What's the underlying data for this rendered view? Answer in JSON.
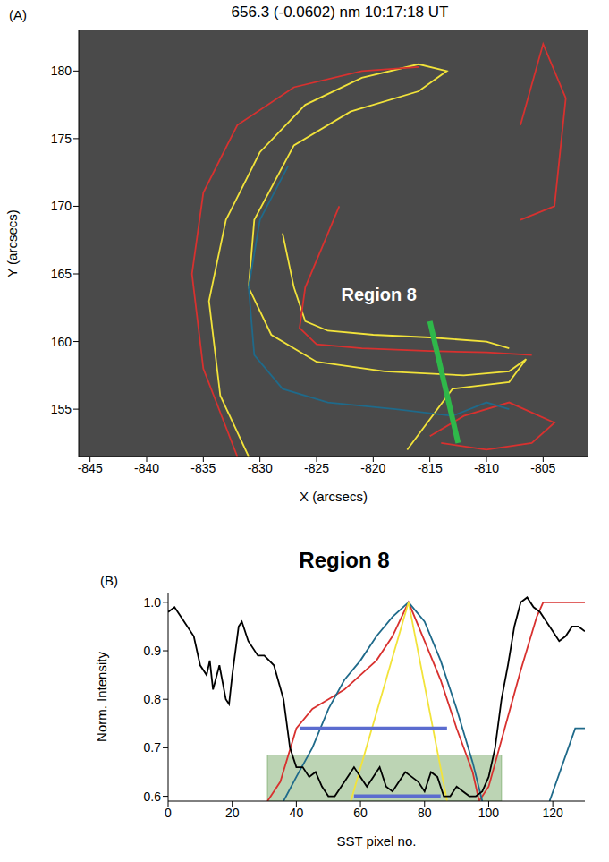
{
  "chart_data": [
    {
      "panel": "(A)",
      "type": "line",
      "title": "656.3 (-0.0602) nm   10:17:18 UT",
      "x_label": "X (arcsecs)",
      "y_label": "Y (arcsecs)",
      "xlim": [
        -846,
        -801
      ],
      "xticks": [
        -845,
        -840,
        -835,
        -830,
        -825,
        -820,
        -815,
        -810,
        -805
      ],
      "ylim": [
        151.5,
        183
      ],
      "yticks": [
        155,
        160,
        165,
        170,
        175,
        180
      ],
      "annotations": [
        {
          "text": "Region 8",
          "x": -819.5,
          "y": 163.5
        }
      ],
      "series": [
        {
          "color": "#f2e33a",
          "x": [
            -831,
            -833.5,
            -834.5,
            -833,
            -830,
            -826,
            -821,
            -816,
            -813.5,
            -816,
            -822,
            -827,
            -830.5,
            -831,
            -829,
            -825,
            -819,
            -812,
            -808,
            -806.5,
            -808,
            -813,
            -817
          ],
          "y": [
            151.5,
            156,
            163,
            169,
            174,
            177.5,
            179.5,
            180.5,
            180,
            178.5,
            177,
            174.5,
            169,
            164,
            160.5,
            158.5,
            157.8,
            157.5,
            157.8,
            158.7,
            157,
            156.5,
            152
          ]
        },
        {
          "color": "#f2e33a",
          "x": [
            -828,
            -827,
            -826,
            -824,
            -820,
            -815,
            -810,
            -808
          ],
          "y": [
            168,
            164,
            161.5,
            160.8,
            160.5,
            160.3,
            160,
            159.5
          ]
        },
        {
          "color": "#d8312f",
          "x": [
            -832,
            -835,
            -836,
            -835,
            -832,
            -827,
            -821,
            -816
          ],
          "y": [
            151.5,
            158,
            165,
            171,
            176,
            178.8,
            180,
            180.3
          ]
        },
        {
          "color": "#d8312f",
          "x": [
            -823,
            -824.5,
            -826,
            -826.5,
            -825,
            -821,
            -815,
            -810,
            -806
          ],
          "y": [
            170,
            167,
            164,
            161,
            159.8,
            159.5,
            159.3,
            159.2,
            159
          ]
        },
        {
          "color": "#d8312f",
          "x": [
            -815,
            -812,
            -808,
            -804,
            -806,
            -810,
            -814
          ],
          "y": [
            153,
            154.5,
            155.5,
            154,
            152.5,
            152,
            152.5
          ]
        },
        {
          "color": "#d8312f",
          "x": [
            -807,
            -804,
            -803,
            -805,
            -807
          ],
          "y": [
            169,
            170,
            178,
            182,
            176
          ]
        },
        {
          "color": "#1f6a8a",
          "x": [
            -827.5,
            -830,
            -831,
            -830.5,
            -828,
            -824,
            -818,
            -813,
            -810,
            -808
          ],
          "y": [
            173,
            169,
            164,
            159,
            156.5,
            155.5,
            155,
            154.5,
            155.5,
            155
          ]
        },
        {
          "color": "#2fb84a",
          "line_style": "bold",
          "x": [
            -815,
            -812.5
          ],
          "y": [
            161.5,
            152.5
          ]
        }
      ]
    },
    {
      "panel": "(B)",
      "type": "line",
      "title": "Region 8",
      "x_label": "SST pixel no.",
      "y_label": "Norm. Intensity",
      "xlim": [
        0,
        130
      ],
      "xticks": [
        0,
        20,
        40,
        60,
        80,
        100,
        120
      ],
      "ylim": [
        0.59,
        1.02
      ],
      "yticks": [
        0.6,
        0.7,
        0.8,
        0.9,
        {
          "value": 1,
          "label": "1.0"
        }
      ],
      "shaded_region": {
        "color": "#8fb882",
        "x": [
          31,
          104
        ],
        "y": [
          0.59,
          0.685
        ]
      },
      "horizontal_bars": {
        "color": "#5b6ccf",
        "segments": [
          {
            "y": 0.74,
            "x": [
              41,
              87
            ]
          },
          {
            "y": 0.6,
            "x": [
              58,
              85
            ]
          }
        ]
      },
      "series": [
        {
          "color": "#d8312f",
          "x": [
            31,
            35,
            40,
            45,
            50,
            55,
            60,
            65,
            70,
            75,
            80,
            85,
            90,
            95,
            97,
            100,
            105,
            110,
            115,
            117,
            130
          ],
          "y": [
            0.59,
            0.63,
            0.74,
            0.78,
            0.8,
            0.82,
            0.85,
            0.88,
            0.93,
            1.0,
            0.92,
            0.84,
            0.74,
            0.65,
            0.59,
            0.62,
            0.74,
            0.86,
            0.97,
            1.0,
            1.0
          ]
        },
        {
          "color": "#1f6a8a",
          "x": [
            36,
            40,
            45,
            50,
            55,
            60,
            65,
            70,
            75,
            80,
            85,
            90,
            95,
            98
          ],
          "y": [
            0.59,
            0.64,
            0.7,
            0.78,
            0.84,
            0.88,
            0.93,
            0.97,
            1.0,
            0.96,
            0.88,
            0.78,
            0.67,
            0.59
          ]
        },
        {
          "color": "#1f6a8a",
          "x": [
            119,
            127,
            130
          ],
          "y": [
            0.59,
            0.74,
            0.74
          ]
        },
        {
          "color": "#f2e33a",
          "x": [
            57,
            75,
            87
          ],
          "y": [
            0.59,
            1.0,
            0.59
          ]
        },
        {
          "color": "#000000",
          "x": [
            0,
            2,
            5,
            8,
            10,
            12,
            13,
            14,
            16,
            18,
            19,
            20,
            22,
            23,
            25,
            28,
            30,
            33,
            36,
            38,
            40,
            42,
            44,
            46,
            48,
            50,
            52,
            54,
            56,
            58,
            60,
            62,
            64,
            66,
            68,
            70,
            72,
            74,
            76,
            78,
            80,
            82,
            84,
            86,
            88,
            90,
            92,
            94,
            96,
            98,
            100,
            102,
            104,
            106,
            108,
            110,
            112,
            114,
            116,
            118,
            120,
            122,
            124,
            126,
            128,
            130
          ],
          "y": [
            0.98,
            0.99,
            0.96,
            0.93,
            0.87,
            0.85,
            0.88,
            0.82,
            0.87,
            0.8,
            0.79,
            0.85,
            0.95,
            0.96,
            0.92,
            0.89,
            0.89,
            0.87,
            0.8,
            0.7,
            0.66,
            0.66,
            0.64,
            0.65,
            0.62,
            0.6,
            0.6,
            0.62,
            0.64,
            0.66,
            0.64,
            0.62,
            0.64,
            0.66,
            0.62,
            0.61,
            0.63,
            0.65,
            0.64,
            0.63,
            0.61,
            0.65,
            0.64,
            0.6,
            0.6,
            0.62,
            0.61,
            0.6,
            0.6,
            0.61,
            0.64,
            0.7,
            0.8,
            0.87,
            0.95,
            1.0,
            1.01,
            0.99,
            0.98,
            0.96,
            0.94,
            0.92,
            0.93,
            0.95,
            0.95,
            0.94
          ]
        }
      ]
    }
  ]
}
